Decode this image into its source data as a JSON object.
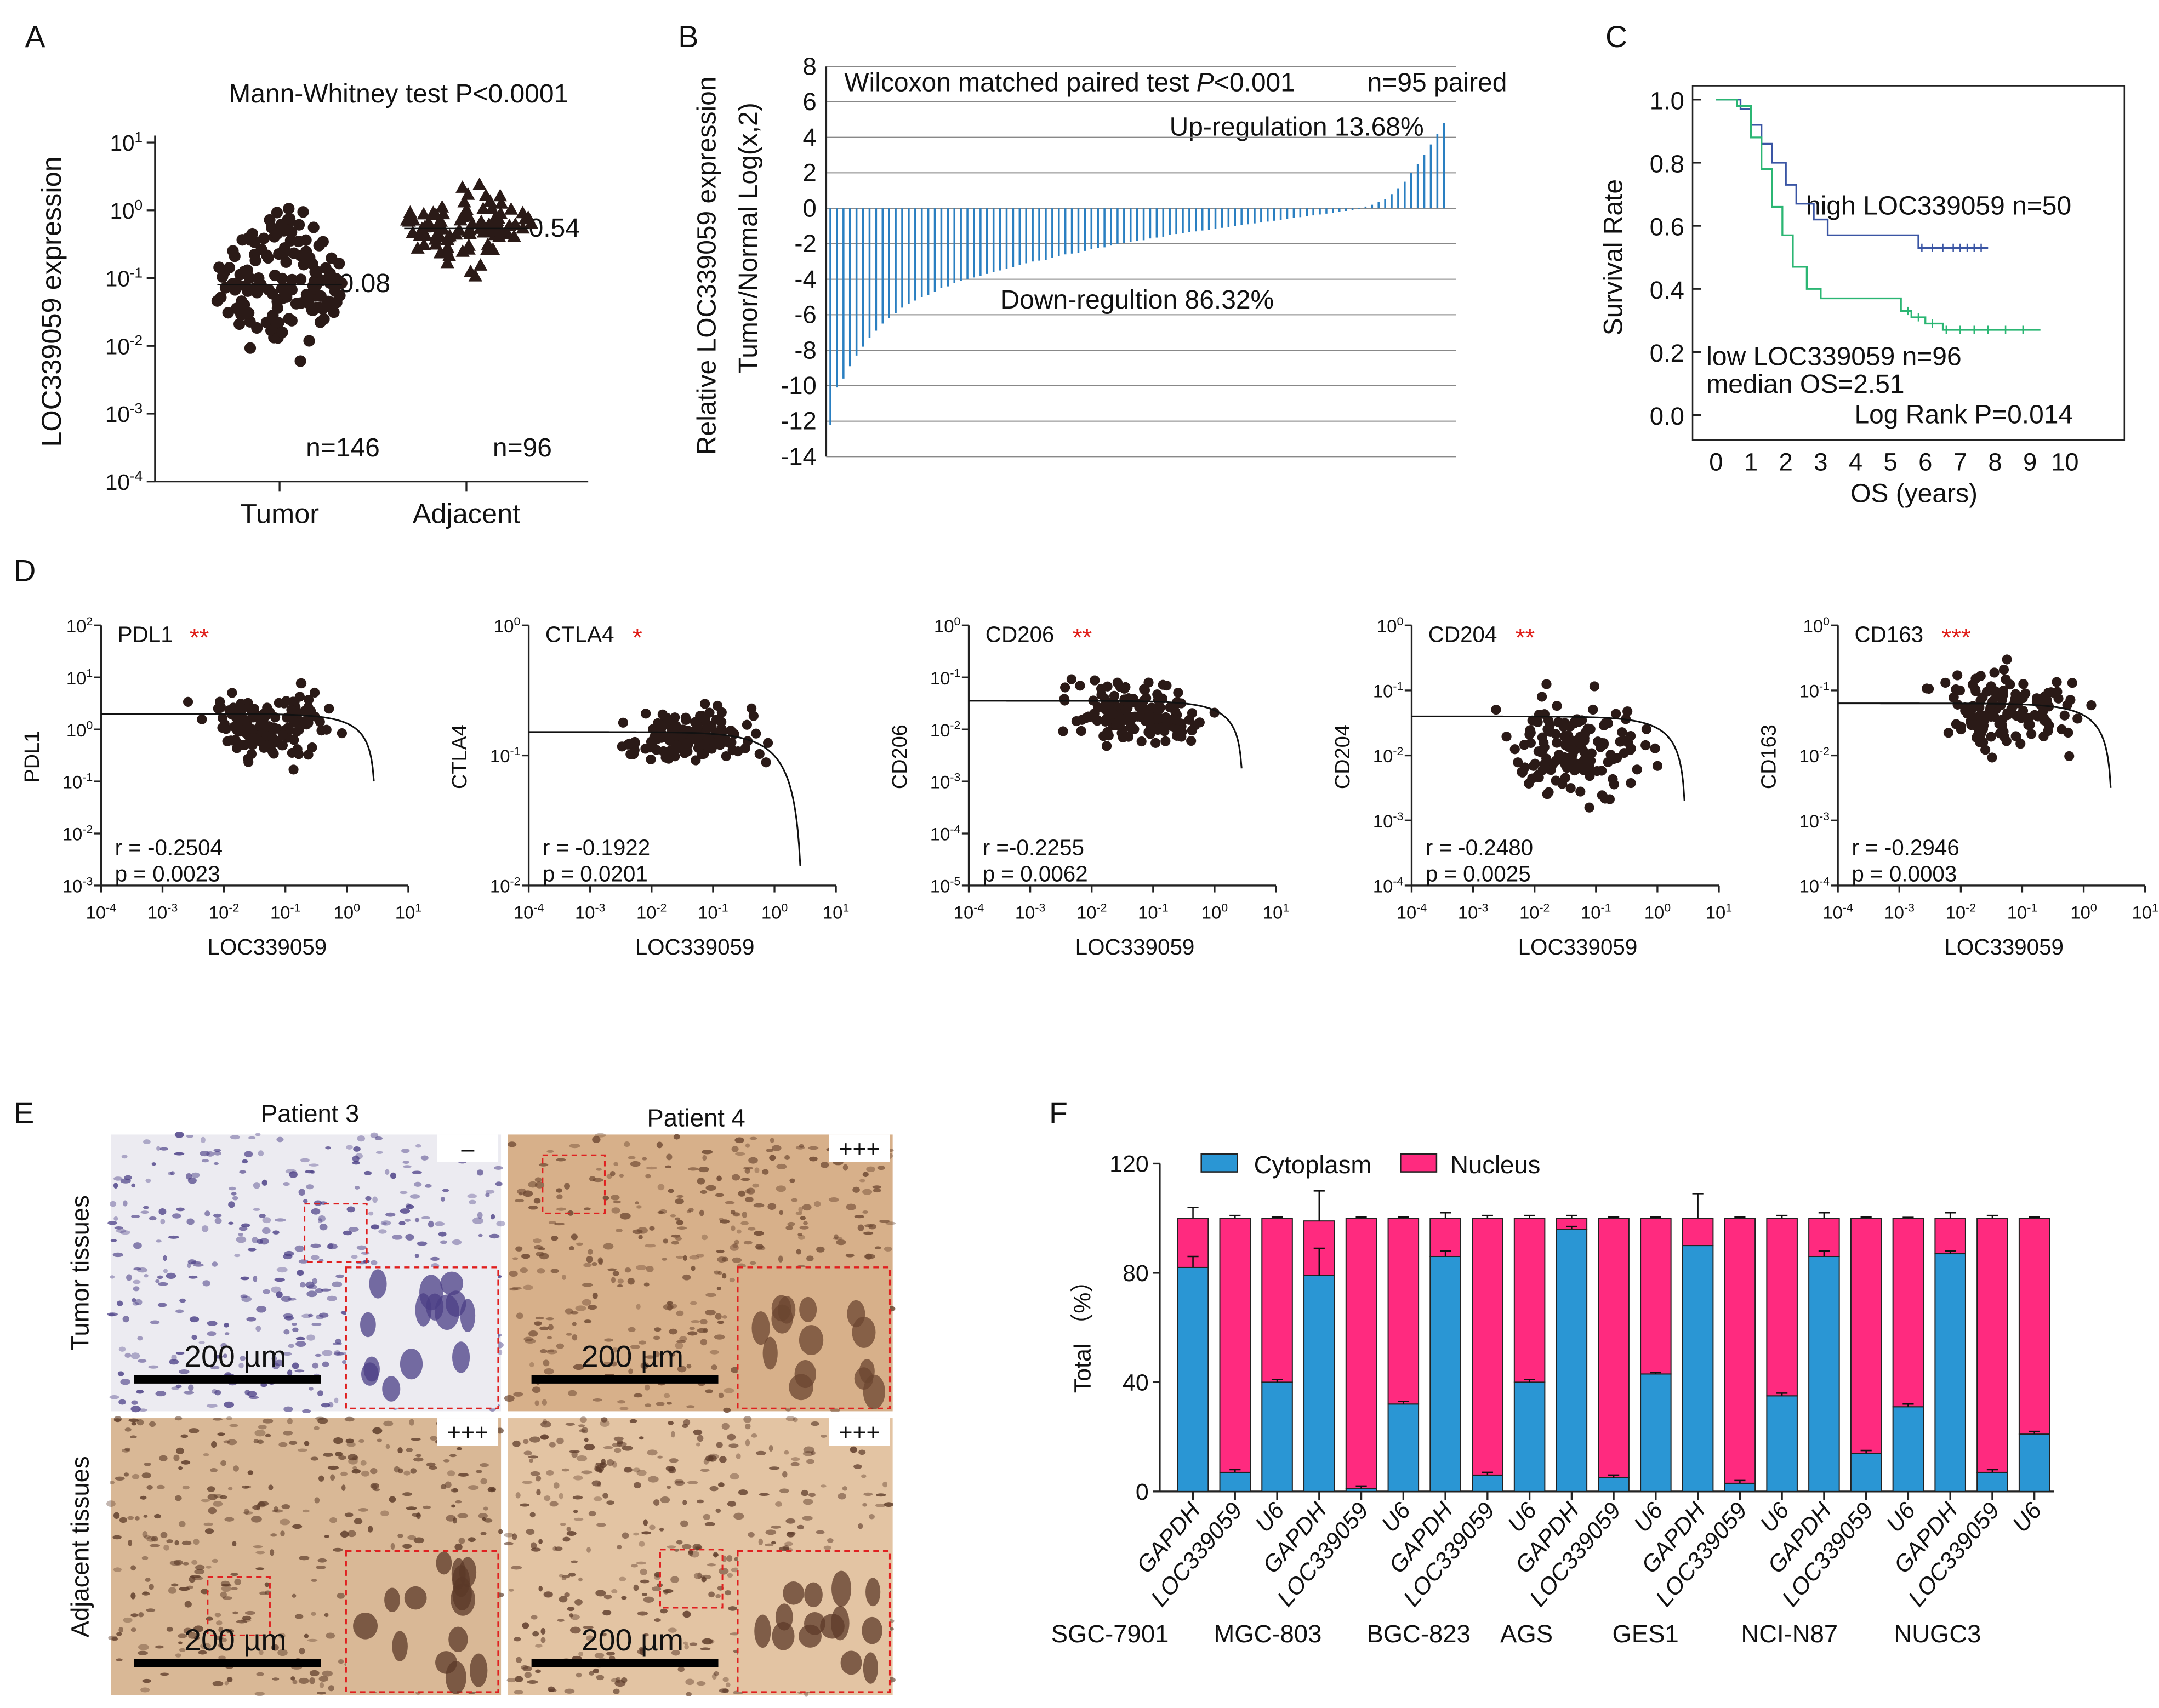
{
  "panel_labels": {
    "a": "A",
    "b": "B",
    "c": "C",
    "d": "D",
    "e": "E",
    "f": "F"
  },
  "colors": {
    "blue_bar": "#2a7fc1",
    "km_high": "#3a55a4",
    "km_low": "#2bb673",
    "cytoplasm": "#2a96d4",
    "nucleus": "#ff2a7f",
    "star": "#e0201b"
  },
  "chart_data": [
    {
      "id": "A",
      "type": "scatter",
      "title": "Mann-Whitney  test P<0.0001",
      "ylabel": "LOC339059 expression",
      "yscale": "log",
      "ylim_exp": [
        -4,
        1
      ],
      "ytick_exps": [
        1,
        0,
        -1,
        -2,
        -3,
        -4
      ],
      "categories": [
        "Tumor",
        "Adjacent"
      ],
      "groups": [
        {
          "name": "Tumor",
          "marker": "circle",
          "n": 146,
          "n_label": "n=146",
          "median": 0.08,
          "median_label": "0.08",
          "log_mean": -1.1,
          "log_sd": 0.65,
          "log_range": [
            -3.7,
            0.42
          ]
        },
        {
          "name": "Adjacent",
          "marker": "triangle",
          "n": 96,
          "n_label": "n=96",
          "median": 0.54,
          "median_label": "0.54",
          "log_mean": -0.25,
          "log_sd": 0.38,
          "log_range": [
            -1.25,
            0.98
          ]
        }
      ]
    },
    {
      "id": "B",
      "type": "bar",
      "ylabel_line1": "Relative  LOC339059 expression",
      "ylabel_line2": "Tumor/Normal Log(x,2)",
      "ylim": [
        -14,
        8
      ],
      "yticks": [
        8,
        6,
        4,
        2,
        0,
        -2,
        -4,
        -6,
        -8,
        -10,
        -12,
        -14
      ],
      "test_label": "Wilcoxon matched paired test ",
      "test_p": "P",
      "test_p_rest": "<0.001",
      "n_label": "n=95 paired",
      "up_label": "Up-regulation 13.68%",
      "down_label": "Down-regultion 86.32%",
      "values": [
        -12.2,
        -10.1,
        -9.6,
        -8.9,
        -8.3,
        -7.8,
        -7.3,
        -6.9,
        -6.5,
        -6.2,
        -5.9,
        -5.6,
        -5.4,
        -5.2,
        -5.0,
        -4.9,
        -4.7,
        -4.5,
        -4.4,
        -4.2,
        -4.1,
        -4.0,
        -3.9,
        -3.8,
        -3.7,
        -3.6,
        -3.5,
        -3.4,
        -3.3,
        -3.2,
        -3.1,
        -3.0,
        -2.95,
        -2.9,
        -2.8,
        -2.7,
        -2.6,
        -2.55,
        -2.5,
        -2.4,
        -2.3,
        -2.25,
        -2.2,
        -2.1,
        -2.0,
        -1.95,
        -1.9,
        -1.85,
        -1.8,
        -1.7,
        -1.65,
        -1.6,
        -1.5,
        -1.45,
        -1.4,
        -1.35,
        -1.3,
        -1.25,
        -1.2,
        -1.15,
        -1.1,
        -1.05,
        -1.0,
        -0.95,
        -0.9,
        -0.85,
        -0.8,
        -0.75,
        -0.7,
        -0.65,
        -0.6,
        -0.55,
        -0.5,
        -0.45,
        -0.4,
        -0.35,
        -0.3,
        -0.25,
        -0.2,
        -0.15,
        -0.1,
        -0.05,
        0.1,
        0.2,
        0.35,
        0.5,
        0.8,
        1.1,
        1.5,
        2.0,
        2.5,
        3.0,
        3.6,
        4.2,
        4.8
      ]
    },
    {
      "id": "C",
      "type": "line",
      "ylabel": "Survival Rate",
      "xlabel": "OS (years)",
      "xlim": [
        0,
        10
      ],
      "ylim": [
        0,
        1
      ],
      "xticks": [
        "0",
        "1",
        "2",
        "3",
        "4",
        "5",
        "6",
        "7",
        "8",
        "9",
        "10"
      ],
      "yticks": [
        "1.0",
        "0.8",
        "0.6",
        "0.4",
        "0.2",
        "0.0"
      ],
      "high_label": "high LOC339059  n=50",
      "low_label": "low LOC339059 n=96",
      "median_label": "median OS=2.51",
      "logrank_label": "Log Rank P=0.014",
      "series": [
        {
          "name": "high LOC339059",
          "t": [
            0,
            0.5,
            0.7,
            1.0,
            1.3,
            1.6,
            2.0,
            2.3,
            2.8,
            3.2,
            5.7,
            5.8,
            7.8
          ],
          "s": [
            1,
            1,
            0.97,
            0.92,
            0.86,
            0.8,
            0.73,
            0.67,
            0.62,
            0.57,
            0.57,
            0.53,
            0.53
          ],
          "censor": [
            5.9,
            6.2,
            6.5,
            6.8,
            7.0,
            7.2,
            7.4,
            7.6
          ]
        },
        {
          "name": "low LOC339059",
          "t": [
            0,
            0.6,
            1.0,
            1.3,
            1.6,
            1.9,
            2.2,
            2.6,
            3.0,
            5.0,
            5.3,
            5.6,
            6.0,
            6.5,
            9.3
          ],
          "s": [
            1,
            0.98,
            0.88,
            0.78,
            0.66,
            0.57,
            0.47,
            0.4,
            0.37,
            0.37,
            0.33,
            0.31,
            0.29,
            0.27,
            0.27
          ],
          "censor": [
            5.5,
            5.8,
            6.2,
            6.6,
            7.0,
            7.4,
            7.8,
            8.3,
            8.8
          ]
        }
      ]
    },
    {
      "id": "D",
      "type": "scatter",
      "xlabel": "LOC339059",
      "xlim_exp": [
        -4,
        1
      ],
      "plots": [
        {
          "gene": "PDL1",
          "stars": "**",
          "r_label": "r = -0.2504",
          "p_label": "p = 0.0023",
          "ylim_exp": [
            -3,
            2
          ],
          "y_center": 0.1,
          "y_sd": 0.5,
          "fit_level": 0.3
        },
        {
          "gene": "CTLA4",
          "stars": "*",
          "r_label": "r = -0.1922",
          "p_label": "p = 0.0201",
          "ylim_exp": [
            -2,
            0
          ],
          "y_center": -0.85,
          "y_sd": 0.15,
          "fit_level": -0.82
        },
        {
          "gene": "CD206",
          "stars": "**",
          "r_label": "r =-0.2255",
          "p_label": "p = 0.0062",
          "ylim_exp": [
            -5,
            0
          ],
          "y_center": -1.7,
          "y_sd": 0.45,
          "fit_level": -1.45
        },
        {
          "gene": "CD204",
          "stars": "**",
          "r_label": "r = -0.2480",
          "p_label": "p = 0.0025",
          "ylim_exp": [
            -4,
            0
          ],
          "y_center": -1.9,
          "y_sd": 0.5,
          "fit_level": -1.4
        },
        {
          "gene": "CD163",
          "stars": "***",
          "r_label": "r = -0.2946",
          "p_label": "p = 0.0003",
          "ylim_exp": [
            -4,
            0
          ],
          "y_center": -1.3,
          "y_sd": 0.4,
          "fit_level": -1.2
        }
      ]
    },
    {
      "id": "F",
      "type": "bar",
      "stacked": true,
      "ylabel": "Total （%）",
      "ylim": [
        0,
        120
      ],
      "yticks": [
        0,
        40,
        80,
        120
      ],
      "legend": [
        "Cytoplasm",
        "Nucleus"
      ],
      "legend_position": "top-left",
      "categories": [
        "GAPDH",
        "LOC339059",
        "U6",
        "GAPDH",
        "LOC339059",
        "U6",
        "GAPDH",
        "LOC339059",
        "U6",
        "GAPDH",
        "LOC339059",
        "U6",
        "GAPDH",
        "LOC339059",
        "U6",
        "GAPDH",
        "LOC339059",
        "U6",
        "GAPDH",
        "LOC339059",
        "U6"
      ],
      "cell_lines": [
        "SGC-7901",
        "MGC-803",
        "BGC-823",
        "AGS",
        "GES1",
        "NCI-N87",
        "NUGC3"
      ],
      "series": [
        {
          "name": "Cytoplasm",
          "values": [
            82,
            7,
            40,
            79,
            1,
            32,
            86,
            6,
            40,
            96,
            5,
            43,
            90,
            3,
            35,
            86,
            14,
            31,
            87,
            7,
            21
          ],
          "err": [
            4,
            1,
            1,
            10,
            1,
            1,
            2,
            1,
            1,
            1,
            1,
            0.5,
            0,
            1,
            1,
            2,
            1,
            1,
            1,
            1,
            1
          ]
        },
        {
          "name": "Nucleus",
          "values": [
            18,
            93,
            60,
            20,
            99,
            68,
            14,
            94,
            60,
            4,
            95,
            57,
            10,
            97,
            65,
            14,
            86,
            69,
            13,
            93,
            79
          ],
          "err": [
            4,
            1,
            0.5,
            11,
            0.5,
            0.5,
            2,
            1,
            1,
            1,
            0.5,
            0.5,
            9,
            0.5,
            1,
            2,
            0.5,
            0.3,
            2,
            1,
            0.5
          ]
        }
      ]
    }
  ],
  "panel_e": {
    "patient3": "Patient 3",
    "patient4": "Patient 4",
    "tumor_label": "Tumor tissues",
    "adjacent_label": "Adjacent tissues",
    "scale_bar": "200 µm",
    "grades": [
      "–",
      "+++",
      "+++",
      "+++"
    ]
  }
}
